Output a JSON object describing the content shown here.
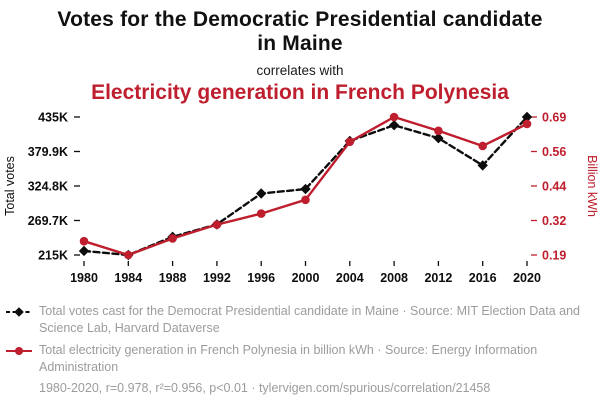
{
  "header": {
    "title": "Votes for the Democratic Presidential candidate in Maine",
    "connector": "correlates with",
    "subtitle": "Electricity generation in French Polynesia"
  },
  "colors": {
    "accent_red": "#be1e2d",
    "series_black": "#0d0d0d",
    "legend_gray": "#9c9c9c"
  },
  "chart_data": {
    "type": "line",
    "title": "Votes for the Democratic Presidential candidate in Maine correlates with Electricity generation in French Polynesia",
    "x_ticks": [
      "1980",
      "1984",
      "1988",
      "1992",
      "1996",
      "2000",
      "2004",
      "2008",
      "2012",
      "2016",
      "2020"
    ],
    "left_axis": {
      "label": "Total votes",
      "min": 214515,
      "max": 435072,
      "ticks": [
        "215K",
        "269.7K",
        "324.8K",
        "379.9K",
        "435K"
      ]
    },
    "right_axis": {
      "label": "Billion kWh",
      "min": 0.19,
      "max": 0.69,
      "ticks": [
        "0.19",
        "0.32",
        "0.44",
        "0.56",
        "0.69"
      ]
    },
    "series": [
      {
        "name": "Votes for the Democrat Presidential candidate in Maine",
        "axis": "left",
        "color": "#0d0d0d",
        "line": "dashed",
        "marker": "diamond",
        "values": [
          220974,
          214515,
          243569,
          263420,
          312788,
          319951,
          396842,
          421923,
          401306,
          357735,
          435072
        ]
      },
      {
        "name": "Electricity generation in French Polynesia (billion kWh)",
        "axis": "right",
        "color": "#be1e2d",
        "line": "solid",
        "marker": "circle",
        "values": [
          0.24,
          0.19,
          0.25,
          0.3,
          0.34,
          0.39,
          0.6,
          0.69,
          0.64,
          0.585,
          0.665
        ]
      }
    ],
    "grid": false,
    "legend_position": "bottom"
  },
  "legend": [
    {
      "text": "Total votes cast for the Democrat Presidential candidate in Maine · Source: MIT Election Data and Science Lab, Harvard Dataverse"
    },
    {
      "text": "Total electricity generation in French Polynesia in billion kWh · Source: Energy Information Administration"
    }
  ],
  "footer": {
    "text": "1980-2020, r=0.978, r²=0.956, p<0.01 · tylervigen.com/spurious/correlation/21458"
  }
}
